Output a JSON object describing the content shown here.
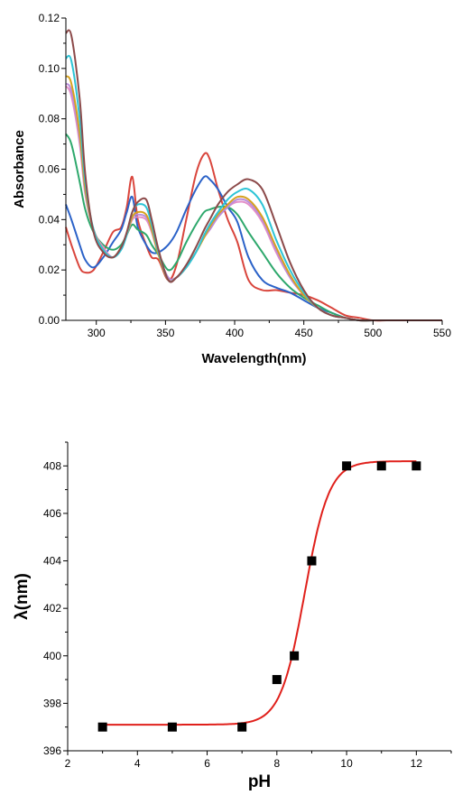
{
  "chart_data": [
    {
      "type": "line",
      "xlabel": "Wavelength(nm)",
      "ylabel": "Absorbance",
      "xlim": [
        278,
        550
      ],
      "ylim": [
        0,
        0.12
      ],
      "xticks": [
        "300",
        "350",
        "400",
        "450",
        "500",
        "550"
      ],
      "yticks": [
        "0.00",
        "0.02",
        "0.04",
        "0.06",
        "0.08",
        "0.10",
        "0.12"
      ],
      "grid": false,
      "legend": "none",
      "series": [
        {
          "color": "#d9453c",
          "x": [
            278,
            282,
            288,
            292,
            298,
            305,
            312,
            318,
            322,
            326,
            330,
            336,
            340,
            345,
            352,
            358,
            365,
            372,
            378,
            382,
            388,
            395,
            402,
            410,
            420,
            430,
            440,
            450,
            460,
            470,
            480,
            490,
            500,
            510,
            520,
            550
          ],
          "y": [
            0.037,
            0.03,
            0.021,
            0.019,
            0.02,
            0.027,
            0.035,
            0.037,
            0.045,
            0.057,
            0.04,
            0.03,
            0.025,
            0.024,
            0.016,
            0.022,
            0.04,
            0.058,
            0.066,
            0.064,
            0.052,
            0.04,
            0.031,
            0.016,
            0.012,
            0.012,
            0.011,
            0.01,
            0.008,
            0.005,
            0.002,
            0.001,
            0.0,
            0.0,
            0.0,
            0.0
          ]
        },
        {
          "color": "#2b62c8",
          "x": [
            278,
            282,
            288,
            292,
            298,
            305,
            312,
            318,
            322,
            326,
            330,
            336,
            340,
            345,
            352,
            358,
            365,
            372,
            378,
            382,
            388,
            395,
            402,
            410,
            420,
            430,
            440,
            450,
            460,
            470,
            480,
            490,
            500,
            510,
            520,
            550
          ],
          "y": [
            0.046,
            0.04,
            0.03,
            0.024,
            0.021,
            0.025,
            0.031,
            0.036,
            0.043,
            0.049,
            0.037,
            0.03,
            0.027,
            0.027,
            0.03,
            0.035,
            0.044,
            0.052,
            0.057,
            0.056,
            0.052,
            0.045,
            0.039,
            0.025,
            0.016,
            0.013,
            0.011,
            0.008,
            0.005,
            0.003,
            0.001,
            0.0,
            0.0,
            0.0,
            0.0,
            0.0
          ]
        },
        {
          "color": "#2ea86c",
          "x": [
            278,
            282,
            288,
            292,
            298,
            305,
            312,
            318,
            322,
            326,
            330,
            336,
            340,
            345,
            352,
            358,
            365,
            372,
            378,
            382,
            388,
            395,
            402,
            410,
            420,
            430,
            440,
            450,
            460,
            470,
            480,
            490,
            500,
            510,
            520,
            550
          ],
          "y": [
            0.074,
            0.07,
            0.055,
            0.044,
            0.035,
            0.03,
            0.028,
            0.03,
            0.034,
            0.038,
            0.036,
            0.034,
            0.03,
            0.026,
            0.02,
            0.023,
            0.031,
            0.038,
            0.043,
            0.044,
            0.045,
            0.045,
            0.042,
            0.035,
            0.027,
            0.019,
            0.013,
            0.009,
            0.006,
            0.003,
            0.001,
            0.0,
            0.0,
            0.0,
            0.0,
            0.0
          ]
        },
        {
          "color": "#e38fc8",
          "x": [
            278,
            282,
            288,
            292,
            298,
            305,
            312,
            318,
            322,
            326,
            330,
            336,
            340,
            345,
            352,
            358,
            365,
            372,
            378,
            382,
            388,
            395,
            402,
            410,
            420,
            430,
            440,
            450,
            460,
            470,
            480,
            490,
            500,
            510,
            520,
            550
          ],
          "y": [
            0.093,
            0.089,
            0.07,
            0.05,
            0.036,
            0.029,
            0.025,
            0.029,
            0.034,
            0.04,
            0.041,
            0.04,
            0.035,
            0.026,
            0.017,
            0.017,
            0.021,
            0.027,
            0.033,
            0.036,
            0.041,
            0.045,
            0.047,
            0.046,
            0.039,
            0.027,
            0.017,
            0.01,
            0.005,
            0.002,
            0.001,
            0.0,
            0.0,
            0.0,
            0.0,
            0.0
          ]
        },
        {
          "color": "#b98cdc",
          "x": [
            278,
            282,
            288,
            292,
            298,
            305,
            312,
            318,
            322,
            326,
            330,
            336,
            340,
            345,
            352,
            358,
            365,
            372,
            378,
            382,
            388,
            395,
            402,
            410,
            420,
            430,
            440,
            450,
            460,
            470,
            480,
            490,
            500,
            510,
            520,
            550
          ],
          "y": [
            0.094,
            0.091,
            0.072,
            0.051,
            0.036,
            0.028,
            0.025,
            0.029,
            0.034,
            0.041,
            0.042,
            0.041,
            0.036,
            0.026,
            0.017,
            0.017,
            0.021,
            0.027,
            0.033,
            0.036,
            0.041,
            0.045,
            0.048,
            0.047,
            0.04,
            0.028,
            0.017,
            0.01,
            0.005,
            0.002,
            0.001,
            0.0,
            0.0,
            0.0,
            0.0,
            0.0
          ]
        },
        {
          "color": "#d6a21e",
          "x": [
            278,
            282,
            288,
            292,
            298,
            305,
            312,
            318,
            322,
            326,
            330,
            336,
            340,
            345,
            352,
            358,
            365,
            372,
            378,
            382,
            388,
            395,
            402,
            410,
            420,
            430,
            440,
            450,
            460,
            470,
            480,
            490,
            500,
            510,
            520,
            550
          ],
          "y": [
            0.097,
            0.094,
            0.074,
            0.052,
            0.036,
            0.028,
            0.025,
            0.029,
            0.034,
            0.041,
            0.043,
            0.042,
            0.036,
            0.026,
            0.016,
            0.017,
            0.021,
            0.027,
            0.033,
            0.037,
            0.042,
            0.046,
            0.049,
            0.048,
            0.041,
            0.029,
            0.018,
            0.01,
            0.005,
            0.002,
            0.001,
            0.0,
            0.0,
            0.0,
            0.0,
            0.0
          ]
        },
        {
          "color": "#2dc4d6",
          "x": [
            278,
            282,
            288,
            292,
            298,
            305,
            312,
            318,
            322,
            326,
            330,
            336,
            340,
            345,
            352,
            358,
            365,
            372,
            378,
            382,
            388,
            395,
            402,
            410,
            420,
            430,
            440,
            450,
            460,
            470,
            480,
            490,
            500,
            510,
            520,
            550
          ],
          "y": [
            0.104,
            0.103,
            0.08,
            0.055,
            0.036,
            0.028,
            0.025,
            0.028,
            0.034,
            0.043,
            0.046,
            0.045,
            0.038,
            0.027,
            0.016,
            0.017,
            0.021,
            0.027,
            0.034,
            0.038,
            0.043,
            0.048,
            0.051,
            0.052,
            0.046,
            0.032,
            0.02,
            0.011,
            0.005,
            0.002,
            0.001,
            0.0,
            0.0,
            0.0,
            0.0,
            0.0
          ]
        },
        {
          "color": "#8c4a4a",
          "x": [
            278,
            282,
            288,
            292,
            298,
            305,
            312,
            318,
            322,
            326,
            330,
            336,
            340,
            345,
            352,
            358,
            365,
            372,
            378,
            382,
            388,
            395,
            402,
            410,
            420,
            430,
            440,
            450,
            460,
            470,
            480,
            490,
            500,
            510,
            520,
            550
          ],
          "y": [
            0.114,
            0.113,
            0.088,
            0.058,
            0.035,
            0.027,
            0.025,
            0.029,
            0.035,
            0.043,
            0.047,
            0.048,
            0.04,
            0.028,
            0.016,
            0.017,
            0.022,
            0.029,
            0.036,
            0.04,
            0.046,
            0.051,
            0.054,
            0.056,
            0.052,
            0.038,
            0.023,
            0.012,
            0.005,
            0.002,
            0.001,
            0.0,
            0.0,
            0.0,
            0.0,
            0.0
          ]
        }
      ]
    },
    {
      "type": "scatter",
      "xlabel": "pH",
      "ylabel": "λ(nm)",
      "xlim": [
        2,
        13
      ],
      "ylim": [
        396,
        409
      ],
      "xticks": [
        "2",
        "4",
        "6",
        "8",
        "10",
        "12"
      ],
      "yticks": [
        "396",
        "398",
        "400",
        "402",
        "404",
        "406",
        "408"
      ],
      "grid": false,
      "legend": "none",
      "series": [
        {
          "marker": "square",
          "color": "#000000",
          "x": [
            3,
            5,
            7,
            8,
            8.5,
            9,
            10,
            11,
            12
          ],
          "y": [
            397,
            397,
            397,
            399,
            400,
            404,
            408,
            408,
            408
          ]
        }
      ],
      "fit_line": {
        "color": "#e0201b",
        "type": "sigmoid",
        "bottom": 397.1,
        "top": 408.2,
        "x50": 8.8,
        "slope": 0.35,
        "x_range": [
          3,
          12
        ]
      }
    }
  ]
}
